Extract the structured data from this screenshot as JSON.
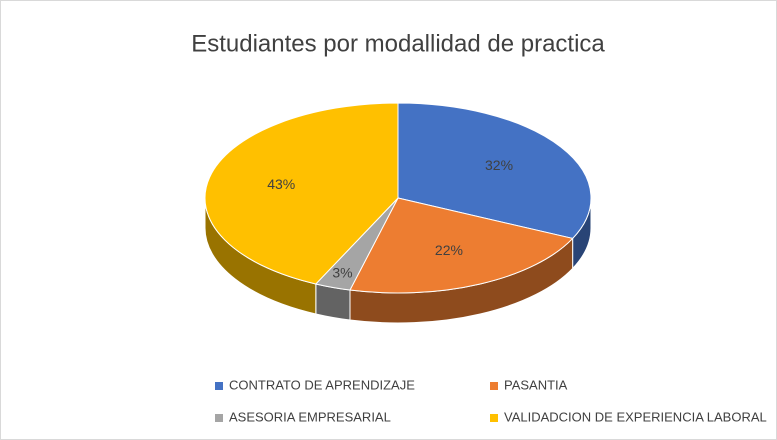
{
  "chart_data": {
    "type": "pie3d",
    "title": "Estudiantes por modallidad de practica",
    "categories": [
      "CONTRATO DE APRENDIZAJE",
      "PASANTIA",
      "ASESORIA EMPRESARIAL",
      "VALIDADCION DE EXPERIENCIA LABORAL"
    ],
    "values": [
      32,
      22,
      3,
      43
    ],
    "value_labels": [
      "32%",
      "22%",
      "3%",
      "43%"
    ],
    "colors": [
      "#4472c4",
      "#ed7d31",
      "#a5a5a5",
      "#ffc000"
    ],
    "legend": "bottom"
  }
}
